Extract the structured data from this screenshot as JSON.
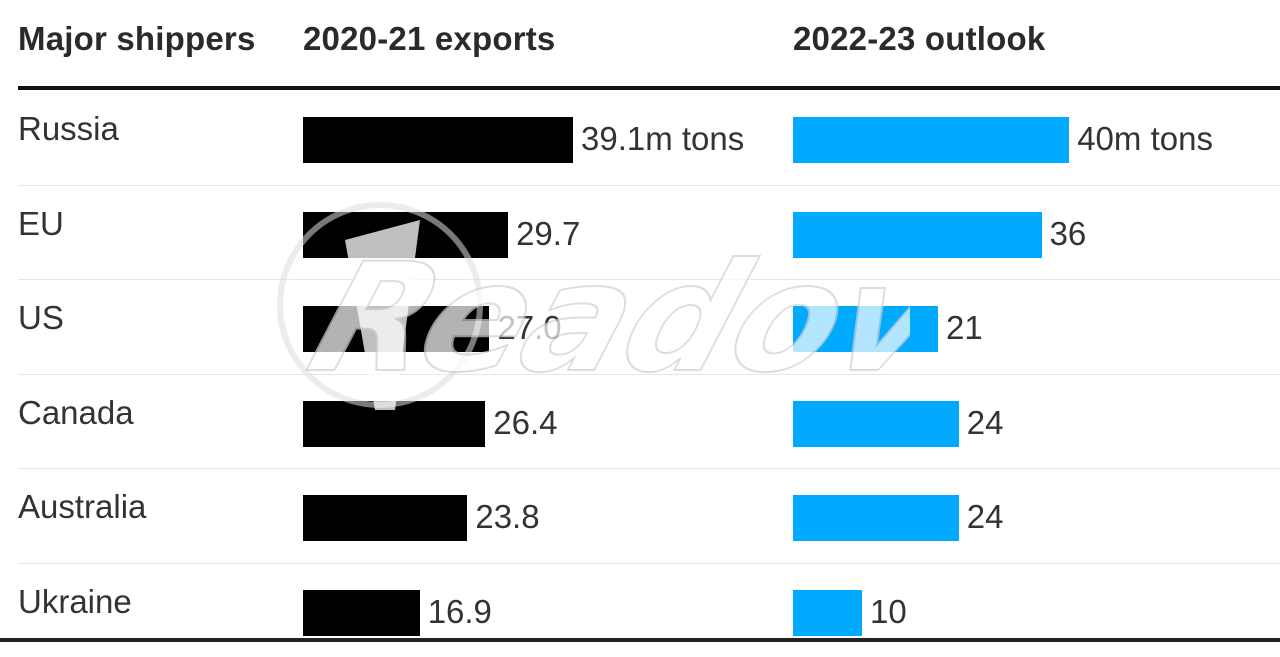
{
  "chart_data": {
    "type": "bar",
    "orientation": "horizontal",
    "columns": {
      "label_header": "Major shippers",
      "series_headers": [
        "2020-21 exports",
        "2022-23 outlook"
      ]
    },
    "categories": [
      "Russia",
      "EU",
      "US",
      "Canada",
      "Australia",
      "Ukraine"
    ],
    "series": [
      {
        "values": [
          39.1,
          29.7,
          27.0,
          26.4,
          23.8,
          16.9
        ],
        "labels": [
          "39.1m tons",
          "29.7",
          "27.0",
          "26.4",
          "23.8",
          "16.9"
        ],
        "color": "#000000"
      },
      {
        "values": [
          40,
          36,
          21,
          24,
          24,
          10
        ],
        "labels": [
          "40m tons",
          "36",
          "21",
          "24",
          "24",
          "10"
        ],
        "color": "#00aaff"
      }
    ],
    "xlim": [
      0,
      40
    ]
  },
  "watermark": {
    "text": "Readovka"
  }
}
